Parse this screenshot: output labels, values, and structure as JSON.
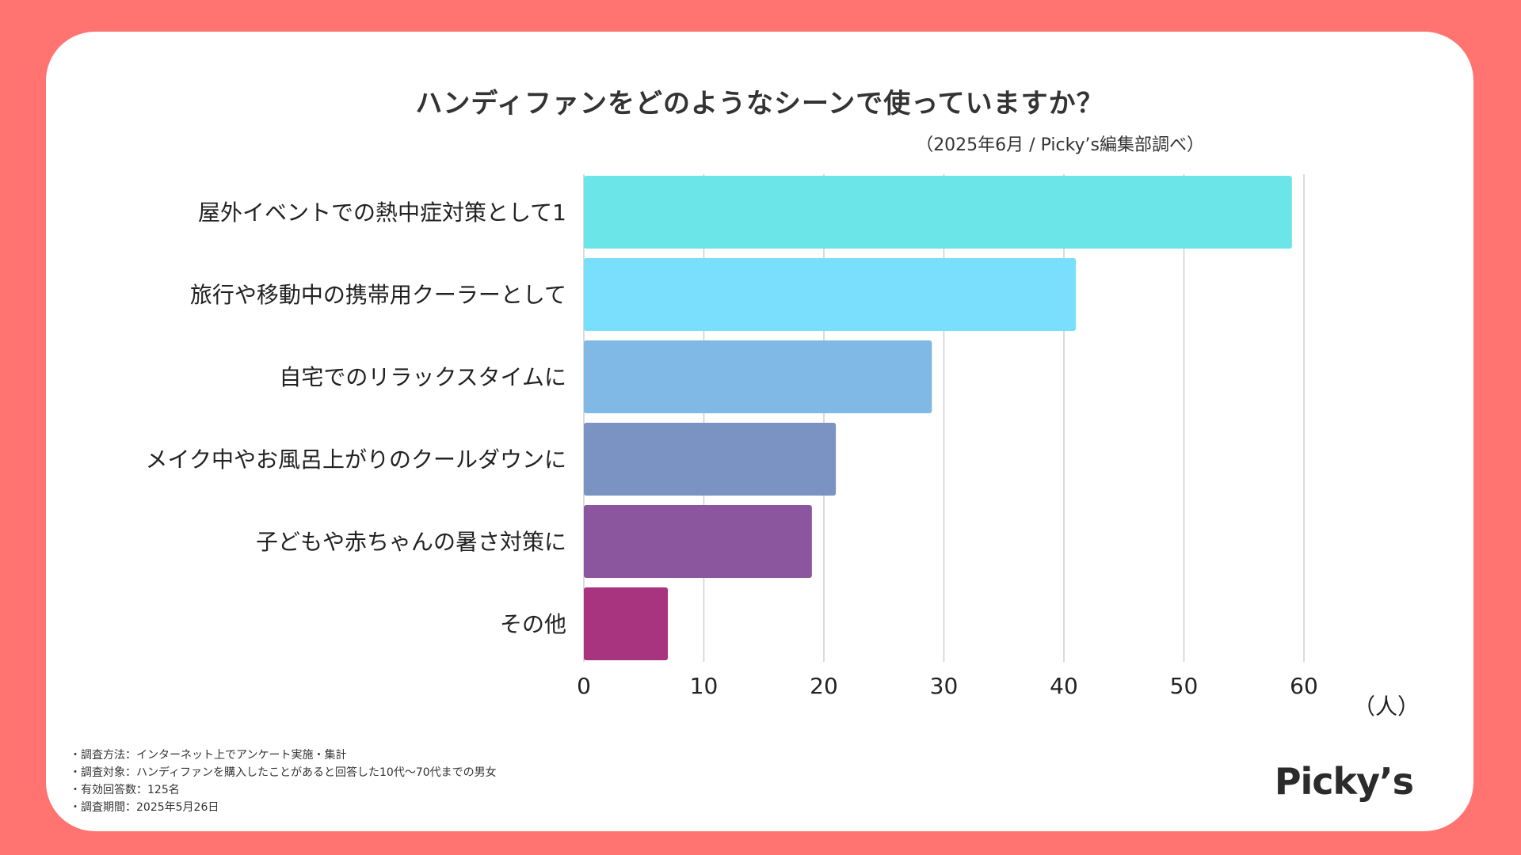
{
  "header": {
    "title": "ハンディファンをどのようなシーンで使っていますか？",
    "source": "（2025年6月 / Picky’s編集部調べ）"
  },
  "chart_data": {
    "type": "bar",
    "orientation": "horizontal",
    "title": "ハンディファンをどのようなシーンで使っていますか？",
    "categories": [
      "屋外イベントでの熱中症対策として1",
      "旅行や移動中の携帯用クーラーとして",
      "自宅でのリラックスタイムに",
      "メイク中やお風呂上がりのクールダウンに",
      "子どもや赤ちゃんの暑さ対策に",
      "その他"
    ],
    "values": [
      59,
      41,
      29,
      21,
      19,
      7
    ],
    "colors": [
      "#6CE5E8",
      "#7ADFFD",
      "#80B9E6",
      "#7B93C2",
      "#8C569E",
      "#A8337E"
    ],
    "xlim": [
      0,
      60
    ],
    "xticks": [
      "0",
      "10",
      "20",
      "30",
      "40",
      "50",
      "60"
    ],
    "xlabel": "（人）",
    "ylabel": "",
    "grid": true
  },
  "footer": {
    "notes": [
      "・調査方法：インターネット上でアンケート実施・集計",
      "・調査対象：ハンディファンを購入したことがあると回答した10代〜70代までの男女",
      "・有効回答数：125名",
      "・調査期間：2025年5月26日"
    ],
    "logo": "Picky’s"
  }
}
